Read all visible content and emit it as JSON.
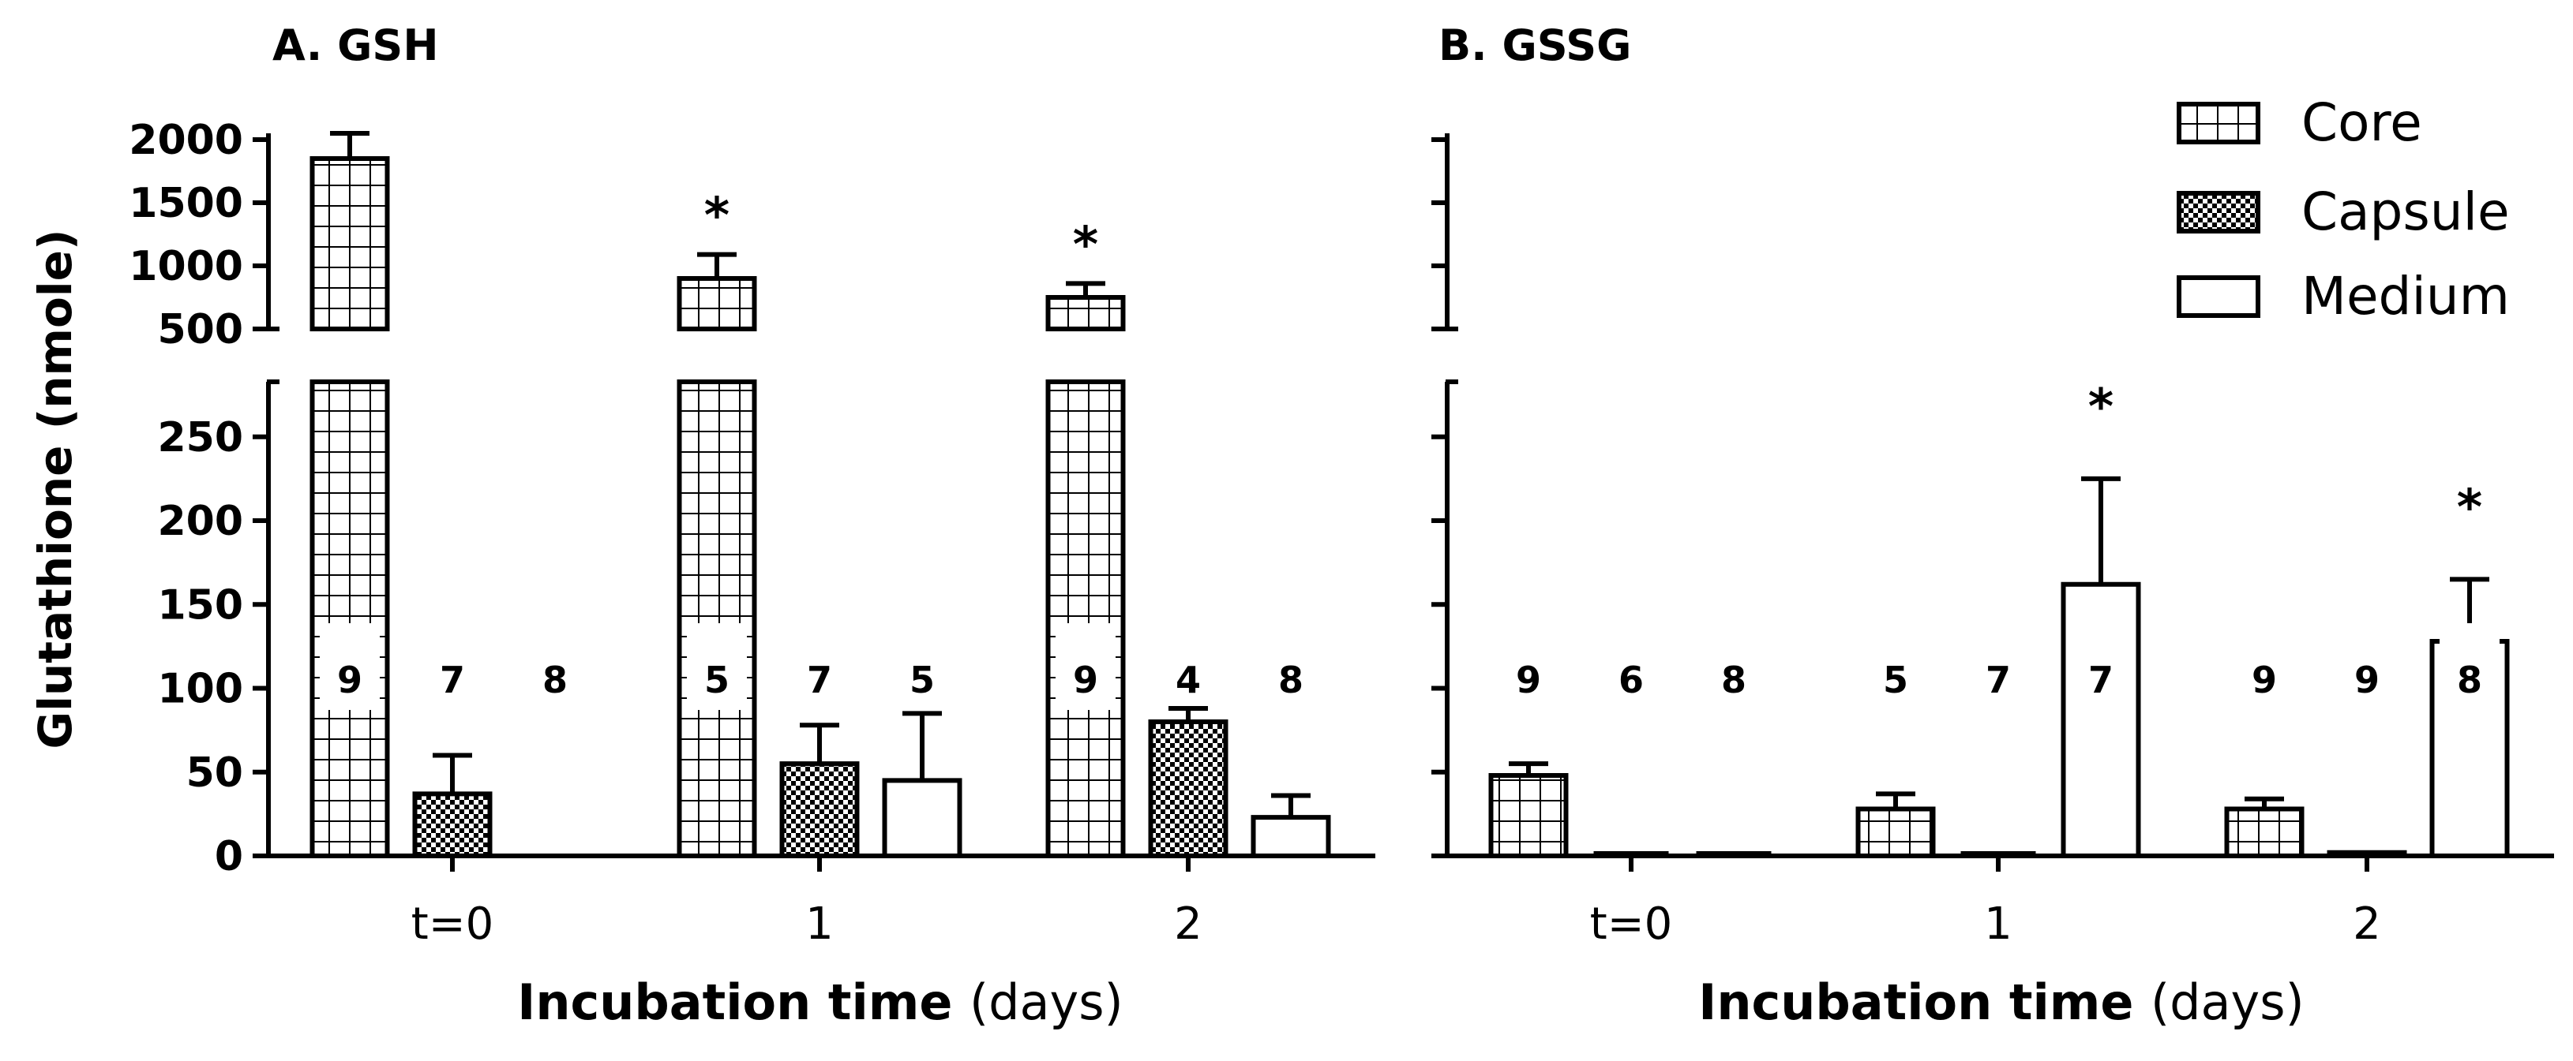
{
  "colors": {
    "ink": "#000000",
    "background": "#ffffff"
  },
  "chart_data": [
    {
      "type": "bar",
      "title": "A. GSH",
      "xlabel": "Incubation time",
      "xlabel_unit": "(days)",
      "ylabel": "Glutathione (nmole)",
      "categories": [
        "t=0",
        "1",
        "2"
      ],
      "axis_break": {
        "lower_ylim": [
          0,
          280
        ],
        "upper_ylim": [
          500,
          2000
        ]
      },
      "yticks_lower": [
        "0",
        "50",
        "100",
        "150",
        "200",
        "250"
      ],
      "yticks_upper": [
        "500",
        "1000",
        "1500",
        "2000"
      ],
      "series": [
        {
          "name": "Core",
          "values": [
            1850,
            900,
            750
          ],
          "errors": [
            200,
            190,
            110
          ],
          "n": [
            "9",
            "5",
            "9"
          ],
          "significance": [
            "",
            "*",
            "*"
          ]
        },
        {
          "name": "Capsule",
          "values": [
            37,
            55,
            80
          ],
          "errors": [
            23,
            23,
            8
          ],
          "n": [
            "7",
            "7",
            "4"
          ],
          "significance": [
            "",
            "",
            ""
          ]
        },
        {
          "name": "Medium",
          "values": [
            0,
            45,
            23
          ],
          "errors": [
            0,
            40,
            13
          ],
          "n": [
            "8",
            "5",
            "8"
          ],
          "significance": [
            "",
            "",
            ""
          ]
        }
      ]
    },
    {
      "type": "bar",
      "title": "B. GSSG",
      "xlabel": "Incubation time",
      "xlabel_unit": "(days)",
      "ylabel": "",
      "categories": [
        "t=0",
        "1",
        "2"
      ],
      "axis_break": {
        "lower_ylim": [
          0,
          280
        ],
        "upper_ylim": [
          500,
          2000
        ]
      },
      "legend": {
        "position": "top-right",
        "entries": [
          "Core",
          "Capsule",
          "Medium"
        ]
      },
      "series": [
        {
          "name": "Core",
          "values": [
            48,
            28,
            28
          ],
          "errors": [
            7,
            9,
            6
          ],
          "n": [
            "9",
            "5",
            "9"
          ],
          "significance": [
            "",
            "",
            ""
          ]
        },
        {
          "name": "Capsule",
          "values": [
            0,
            0,
            2
          ],
          "errors": [
            0,
            0,
            0
          ],
          "n": [
            "6",
            "7",
            "9"
          ],
          "significance": [
            "",
            "",
            ""
          ]
        },
        {
          "name": "Medium",
          "values": [
            0,
            162,
            128
          ],
          "errors": [
            0,
            63,
            37
          ],
          "n": [
            "8",
            "7",
            "8"
          ],
          "significance": [
            "",
            "*",
            "*"
          ]
        }
      ]
    }
  ]
}
